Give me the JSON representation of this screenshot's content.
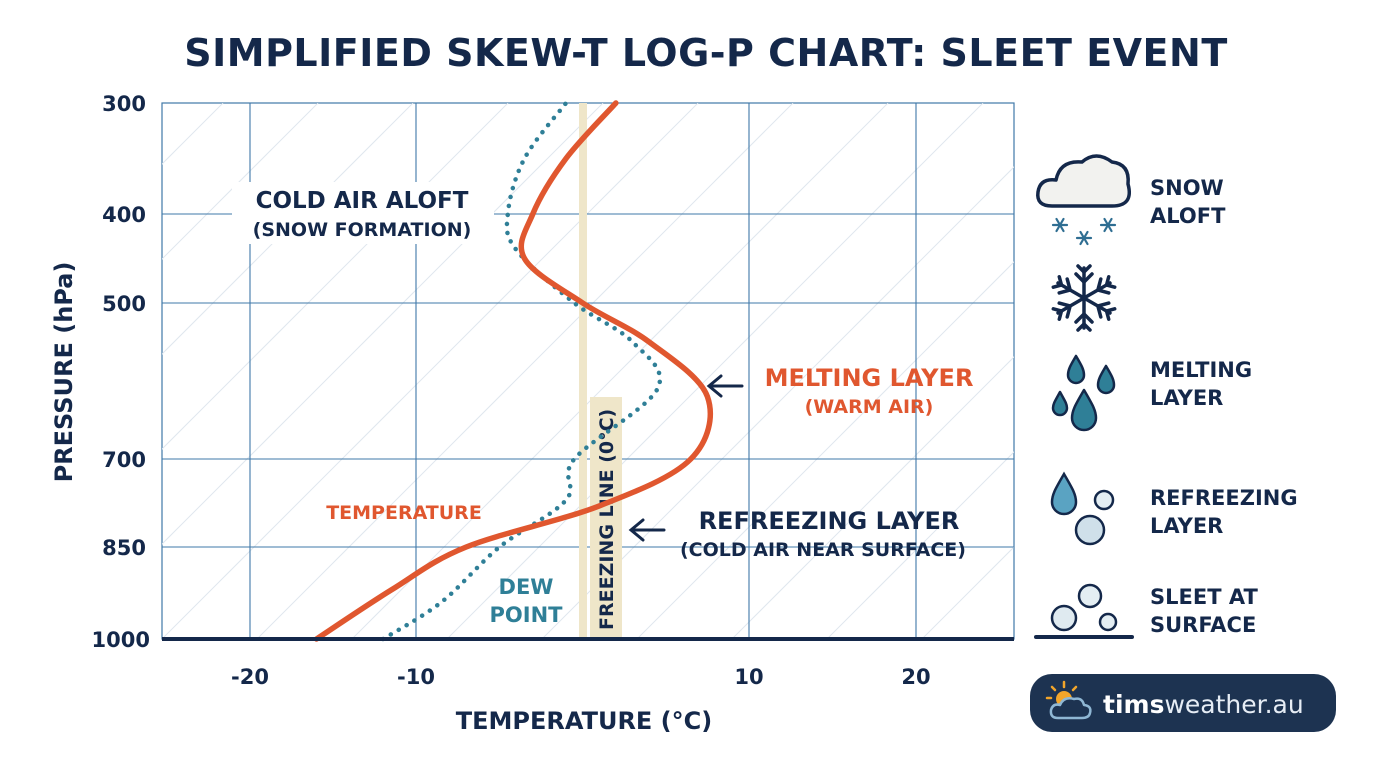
{
  "chart_data": {
    "type": "line",
    "title": "SIMPLIFIED SKEW-T LOG-P CHART: SLEET EVENT",
    "xlabel": "TEMPERATURE (°C)",
    "ylabel": "PRESSURE (hPa)",
    "x_ticks": [
      "-20",
      "-10",
      "10",
      "20"
    ],
    "y_ticks": [
      "300",
      "400",
      "500",
      "700",
      "850",
      "1000"
    ],
    "y_scale": "log",
    "series": [
      {
        "name": "TEMPERATURE",
        "color": "#e0572f",
        "style": "solid",
        "points": [
          [
            -16,
            1000
          ],
          [
            -11.5,
            920
          ],
          [
            -7,
            850
          ],
          [
            1,
            780
          ],
          [
            6.5,
            700
          ],
          [
            7.5,
            620
          ],
          [
            4,
            550
          ],
          [
            0,
            500
          ],
          [
            -3.5,
            450
          ],
          [
            -3,
            400
          ],
          [
            -1,
            350
          ],
          [
            2,
            300
          ]
        ]
      },
      {
        "name": "DEW POINT",
        "color": "#2f7f97",
        "style": "dotted",
        "points": [
          [
            -12,
            1000
          ],
          [
            -8.5,
            940
          ],
          [
            -5,
            850
          ],
          [
            -1,
            770
          ],
          [
            -0.5,
            700
          ],
          [
            4.5,
            610
          ],
          [
            3,
            550
          ],
          [
            -0.5,
            500
          ],
          [
            -4,
            440
          ],
          [
            -4.5,
            400
          ],
          [
            -3.5,
            350
          ],
          [
            -1,
            300
          ]
        ]
      }
    ],
    "freezing_line": {
      "x": 0,
      "label": "FREEZING LINE (0°C)"
    },
    "annotations": {
      "cold_air_aloft": "COLD AIR ALOFT",
      "snow_formation": "(SNOW FORMATION)",
      "melting_layer": "MELTING LAYER",
      "warm_air": "(WARM AIR)",
      "refreezing_layer": "REFREEZING LAYER",
      "cold_air_near_surface": "(COLD AIR NEAR SURFACE)",
      "temperature": "TEMPERATURE",
      "dew": "DEW",
      "point": "POINT"
    },
    "grid": true,
    "legend": "none"
  },
  "side_panel": [
    {
      "icon": "snow-cloud-icon",
      "line1": "SNOW",
      "line2": "ALOFT"
    },
    {
      "icon": "snowflake-icon",
      "line1": "",
      "line2": ""
    },
    {
      "icon": "melting-drops-icon",
      "line1": "MELTING",
      "line2": "LAYER"
    },
    {
      "icon": "refreezing-drops-icon",
      "line1": "REFREEZING",
      "line2": "LAYER"
    },
    {
      "icon": "sleet-pellets-icon",
      "line1": "SLEET AT",
      "line2": "SURFACE"
    }
  ],
  "brand": {
    "text_bold": "tims",
    "text_light": "weather.au"
  },
  "colors": {
    "navy": "#14284a",
    "temperature": "#e0572f",
    "dewpoint": "#2f7f97",
    "grid": "#3f78a8",
    "freezing_band": "#efe6c9"
  }
}
